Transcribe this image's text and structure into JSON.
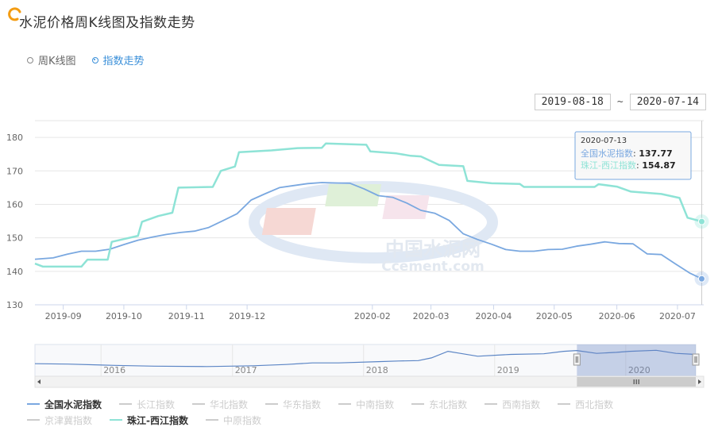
{
  "title": "水泥价格周K线图及指数走势",
  "modes": [
    {
      "label": "周K线图",
      "active": false
    },
    {
      "label": "指数走势",
      "active": true
    }
  ],
  "range": {
    "start": "2019-08-18",
    "sep": "~",
    "end": "2020-07-14"
  },
  "watermark": {
    "cn": "中国水泥网",
    "en": "Ccement.com"
  },
  "tooltip": {
    "date": "2020-07-13",
    "rows": [
      {
        "name": "全国水泥指数",
        "value": "137.77"
      },
      {
        "name": "珠江-西江指数",
        "value": "154.87"
      }
    ]
  },
  "colors": {
    "national": "#7aa8e0",
    "zhujiang": "#8ee3d6",
    "inactive": "#cccccc",
    "nav": "#5b85c5"
  },
  "chart_data": {
    "type": "line",
    "x_range": [
      "2019-08-18",
      "2020-07-14"
    ],
    "ylim": [
      130,
      185
    ],
    "y_ticks": [
      130,
      140,
      150,
      160,
      170,
      180
    ],
    "x_ticks": [
      {
        "label": "2019-09",
        "date": "2019-09-01"
      },
      {
        "label": "2019-10",
        "date": "2019-10-01"
      },
      {
        "label": "2019-11",
        "date": "2019-11-01"
      },
      {
        "label": "2019-12",
        "date": "2019-12-01"
      },
      {
        "label": "2020-02",
        "date": "2020-02-01"
      },
      {
        "label": "2020-03",
        "date": "2020-03-01"
      },
      {
        "label": "2020-04",
        "date": "2020-04-01"
      },
      {
        "label": "2020-05",
        "date": "2020-05-01"
      },
      {
        "label": "2020-06",
        "date": "2020-06-01"
      },
      {
        "label": "2020-07",
        "date": "2020-07-01"
      }
    ],
    "series": [
      {
        "name": "全国水泥指数",
        "points": [
          [
            "2019-08-18",
            143.6
          ],
          [
            "2019-08-27",
            144.0
          ],
          [
            "2019-09-03",
            145.1
          ],
          [
            "2019-09-10",
            146.0
          ],
          [
            "2019-09-17",
            146.0
          ],
          [
            "2019-09-24",
            146.6
          ],
          [
            "2019-10-01",
            148.0
          ],
          [
            "2019-10-08",
            149.3
          ],
          [
            "2019-10-15",
            150.2
          ],
          [
            "2019-10-22",
            151.0
          ],
          [
            "2019-10-29",
            151.6
          ],
          [
            "2019-11-05",
            152.0
          ],
          [
            "2019-11-12",
            153.1
          ],
          [
            "2019-11-19",
            155.1
          ],
          [
            "2019-11-26",
            157.2
          ],
          [
            "2019-12-03",
            161.3
          ],
          [
            "2019-12-10",
            163.2
          ],
          [
            "2019-12-17",
            165.0
          ],
          [
            "2019-12-24",
            165.6
          ],
          [
            "2019-12-31",
            166.2
          ],
          [
            "2020-01-07",
            166.5
          ],
          [
            "2020-01-14",
            166.4
          ],
          [
            "2020-01-21",
            166.3
          ],
          [
            "2020-01-28",
            164.6
          ],
          [
            "2020-02-04",
            162.6
          ],
          [
            "2020-02-11",
            162.1
          ],
          [
            "2020-02-18",
            160.4
          ],
          [
            "2020-02-25",
            158.2
          ],
          [
            "2020-03-03",
            157.3
          ],
          [
            "2020-03-10",
            155.2
          ],
          [
            "2020-03-17",
            151.2
          ],
          [
            "2020-03-24",
            149.5
          ],
          [
            "2020-03-31",
            148.1
          ],
          [
            "2020-04-07",
            146.5
          ],
          [
            "2020-04-14",
            146.0
          ],
          [
            "2020-04-21",
            146.0
          ],
          [
            "2020-04-28",
            146.5
          ],
          [
            "2020-05-05",
            146.6
          ],
          [
            "2020-05-12",
            147.5
          ],
          [
            "2020-05-19",
            148.1
          ],
          [
            "2020-05-26",
            148.8
          ],
          [
            "2020-06-02",
            148.3
          ],
          [
            "2020-06-09",
            148.2
          ],
          [
            "2020-06-16",
            145.2
          ],
          [
            "2020-06-23",
            145.0
          ],
          [
            "2020-06-30",
            142.2
          ],
          [
            "2020-07-07",
            139.5
          ],
          [
            "2020-07-13",
            137.77
          ]
        ]
      },
      {
        "name": "珠江-西江指数",
        "points": [
          [
            "2019-08-18",
            142.3
          ],
          [
            "2019-08-22",
            141.4
          ],
          [
            "2019-09-10",
            141.4
          ],
          [
            "2019-09-13",
            143.5
          ],
          [
            "2019-09-23",
            143.5
          ],
          [
            "2019-09-25",
            148.8
          ],
          [
            "2019-10-08",
            150.6
          ],
          [
            "2019-10-10",
            154.8
          ],
          [
            "2019-10-18",
            156.5
          ],
          [
            "2019-10-25",
            157.5
          ],
          [
            "2019-10-28",
            165.0
          ],
          [
            "2019-11-14",
            165.2
          ],
          [
            "2019-11-18",
            170.0
          ],
          [
            "2019-11-25",
            171.3
          ],
          [
            "2019-11-27",
            175.6
          ],
          [
            "2019-12-13",
            176.1
          ],
          [
            "2019-12-26",
            176.8
          ],
          [
            "2020-01-07",
            176.9
          ],
          [
            "2020-01-09",
            178.2
          ],
          [
            "2020-01-29",
            177.8
          ],
          [
            "2020-01-31",
            175.8
          ],
          [
            "2020-02-13",
            175.2
          ],
          [
            "2020-02-20",
            174.5
          ],
          [
            "2020-02-25",
            174.3
          ],
          [
            "2020-03-05",
            171.8
          ],
          [
            "2020-03-17",
            171.4
          ],
          [
            "2020-03-19",
            167.0
          ],
          [
            "2020-03-31",
            166.3
          ],
          [
            "2020-04-14",
            166.1
          ],
          [
            "2020-04-16",
            165.2
          ],
          [
            "2020-05-21",
            165.2
          ],
          [
            "2020-05-23",
            166.0
          ],
          [
            "2020-06-01",
            165.3
          ],
          [
            "2020-06-08",
            163.8
          ],
          [
            "2020-06-23",
            163.1
          ],
          [
            "2020-07-02",
            161.9
          ],
          [
            "2020-07-06",
            156.0
          ],
          [
            "2020-07-13",
            154.87
          ]
        ]
      }
    ],
    "navigator": {
      "ticks": [
        "2016",
        "2017",
        "2018",
        "2019",
        "2020"
      ]
    },
    "legend": [
      {
        "name": "全国水泥指数",
        "active": true,
        "color": "#7aa8e0"
      },
      {
        "name": "长江指数",
        "active": false
      },
      {
        "name": "华北指数",
        "active": false
      },
      {
        "name": "华东指数",
        "active": false
      },
      {
        "name": "中南指数",
        "active": false
      },
      {
        "name": "东北指数",
        "active": false
      },
      {
        "name": "西南指数",
        "active": false
      },
      {
        "name": "西北指数",
        "active": false
      },
      {
        "name": "京津冀指数",
        "active": false
      },
      {
        "name": "珠江-西江指数",
        "active": true,
        "color": "#8ee3d6"
      },
      {
        "name": "中原指数",
        "active": false
      }
    ]
  }
}
